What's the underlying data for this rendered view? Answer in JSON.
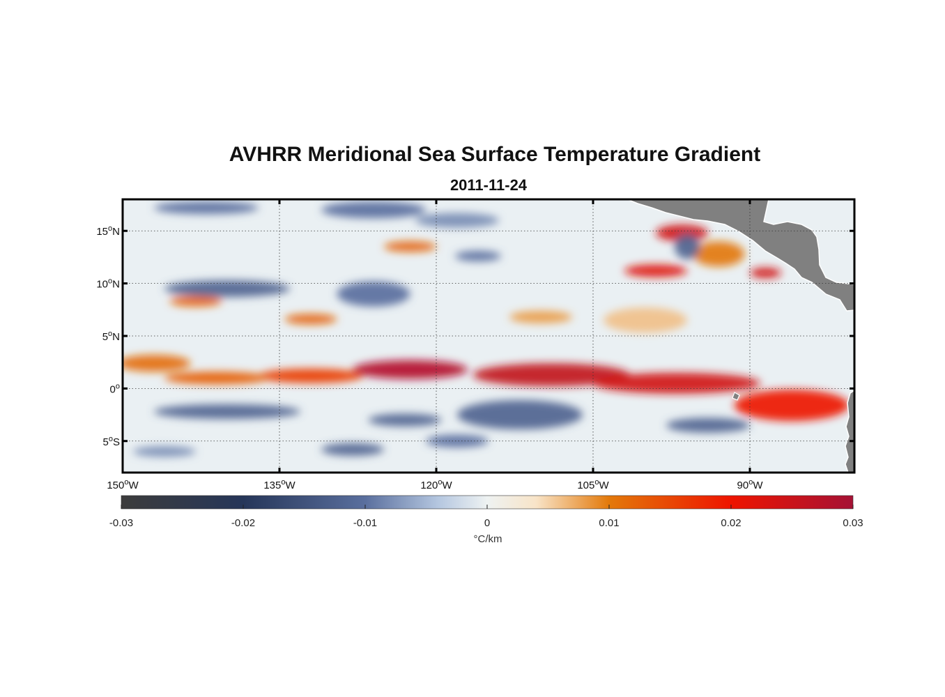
{
  "title": "AVHRR Meridional Sea Surface Temperature Gradient",
  "subtitle": "2011-11-24",
  "map": {
    "lon_range": [
      -150,
      -80
    ],
    "lat_range": [
      -8,
      18
    ],
    "lon_ticks": [
      {
        "value": -150,
        "num": "150",
        "hemi": "W"
      },
      {
        "value": -135,
        "num": "135",
        "hemi": "W"
      },
      {
        "value": -120,
        "num": "120",
        "hemi": "W"
      },
      {
        "value": -105,
        "num": "105",
        "hemi": "W"
      },
      {
        "value": -90,
        "num": "90",
        "hemi": "W"
      }
    ],
    "lat_ticks": [
      {
        "value": 15,
        "num": "15",
        "hemi": "N"
      },
      {
        "value": 10,
        "num": "10",
        "hemi": "N"
      },
      {
        "value": 5,
        "num": "5",
        "hemi": "N"
      },
      {
        "value": 0,
        "num": "0",
        "hemi": ""
      },
      {
        "value": -5,
        "num": "5",
        "hemi": "S"
      }
    ],
    "degree_symbol": "o",
    "land_color": "#808080",
    "features": [
      {
        "lon": -122.5,
        "lat": 1.8,
        "rlon": 5.5,
        "rlat": 0.9,
        "value": 0.028
      },
      {
        "lon": -109,
        "lat": 1.3,
        "rlon": 7.5,
        "rlat": 1.1,
        "value": 0.026
      },
      {
        "lon": -97,
        "lat": 0.5,
        "rlon": 8,
        "rlat": 1.0,
        "value": 0.024
      },
      {
        "lon": -86,
        "lat": -1.6,
        "rlon": 5.5,
        "rlat": 1.5,
        "value": 0.02
      },
      {
        "lon": -132,
        "lat": 1.2,
        "rlon": 5,
        "rlat": 0.7,
        "value": 0.016
      },
      {
        "lon": -141,
        "lat": 1.0,
        "rlon": 5,
        "rlat": 0.6,
        "value": 0.013
      },
      {
        "lon": -147,
        "lat": 2.4,
        "rlon": 3.5,
        "rlat": 0.8,
        "value": 0.011
      },
      {
        "lon": -99,
        "lat": 11.2,
        "rlon": 3,
        "rlat": 0.6,
        "value": 0.022
      },
      {
        "lon": -96.5,
        "lat": 14.8,
        "rlon": 2.5,
        "rlat": 0.8,
        "value": 0.024
      },
      {
        "lon": -88.5,
        "lat": 11.0,
        "rlon": 1.5,
        "rlat": 0.5,
        "value": 0.024
      },
      {
        "lon": -122.5,
        "lat": 13.5,
        "rlon": 2.5,
        "rlat": 0.5,
        "value": 0.012
      },
      {
        "lon": -132,
        "lat": 6.6,
        "rlon": 2.5,
        "rlat": 0.5,
        "value": 0.012
      },
      {
        "lon": -143,
        "lat": 8.3,
        "rlon": 2.5,
        "rlat": 0.5,
        "value": 0.012
      },
      {
        "lon": -93,
        "lat": 12.8,
        "rlon": 2.5,
        "rlat": 1.2,
        "value": 0.01
      },
      {
        "lon": -110,
        "lat": 6.8,
        "rlon": 3,
        "rlat": 0.6,
        "value": 0.008
      },
      {
        "lon": -100,
        "lat": 6.5,
        "rlon": 4,
        "rlat": 1.2,
        "value": 0.006
      },
      {
        "lon": -140,
        "lat": -2.2,
        "rlon": 7,
        "rlat": 0.7,
        "value": -0.012
      },
      {
        "lon": -112,
        "lat": -2.5,
        "rlon": 6,
        "rlat": 1.4,
        "value": -0.012
      },
      {
        "lon": -94,
        "lat": -3.5,
        "rlon": 4,
        "rlat": 0.7,
        "value": -0.012
      },
      {
        "lon": -123,
        "lat": -3.0,
        "rlon": 3.5,
        "rlat": 0.6,
        "value": -0.012
      },
      {
        "lon": -128,
        "lat": -5.8,
        "rlon": 3,
        "rlat": 0.6,
        "value": -0.012
      },
      {
        "lon": -118,
        "lat": -5.0,
        "rlon": 3,
        "rlat": 0.6,
        "value": -0.01
      },
      {
        "lon": -140,
        "lat": 9.5,
        "rlon": 6,
        "rlat": 0.8,
        "value": -0.012
      },
      {
        "lon": -126,
        "lat": 9.0,
        "rlon": 3.5,
        "rlat": 1.2,
        "value": -0.01
      },
      {
        "lon": -142,
        "lat": 17.2,
        "rlon": 5,
        "rlat": 0.6,
        "value": -0.01
      },
      {
        "lon": -126,
        "lat": 17.0,
        "rlon": 5,
        "rlat": 0.8,
        "value": -0.01
      },
      {
        "lon": -96,
        "lat": 13.5,
        "rlon": 1.2,
        "rlat": 1.2,
        "value": -0.012
      },
      {
        "lon": -116,
        "lat": 12.6,
        "rlon": 2.2,
        "rlat": 0.5,
        "value": -0.01
      },
      {
        "lon": -118,
        "lat": 16.0,
        "rlon": 4,
        "rlat": 0.7,
        "value": -0.008
      },
      {
        "lon": -146,
        "lat": -6.0,
        "rlon": 3,
        "rlat": 0.5,
        "value": -0.008
      }
    ]
  },
  "colorbar": {
    "min": -0.03,
    "max": 0.03,
    "ticks": [
      "-0.03",
      "-0.02",
      "-0.01",
      "0",
      "0.01",
      "0.02",
      "0.03"
    ],
    "tick_values": [
      -0.03,
      -0.02,
      -0.01,
      0,
      0.01,
      0.02,
      0.03
    ],
    "units": "°C/km",
    "stops": [
      {
        "value": -0.03,
        "color": "#3c3c3c"
      },
      {
        "value": -0.02,
        "color": "#263659"
      },
      {
        "value": -0.01,
        "color": "#5a6f9e"
      },
      {
        "value": -0.004,
        "color": "#b5c7e0"
      },
      {
        "value": 0,
        "color": "#eef2f2"
      },
      {
        "value": 0.004,
        "color": "#f8e4c8"
      },
      {
        "value": 0.01,
        "color": "#e3790a"
      },
      {
        "value": 0.02,
        "color": "#ee1400"
      },
      {
        "value": 0.03,
        "color": "#a51235"
      }
    ]
  }
}
